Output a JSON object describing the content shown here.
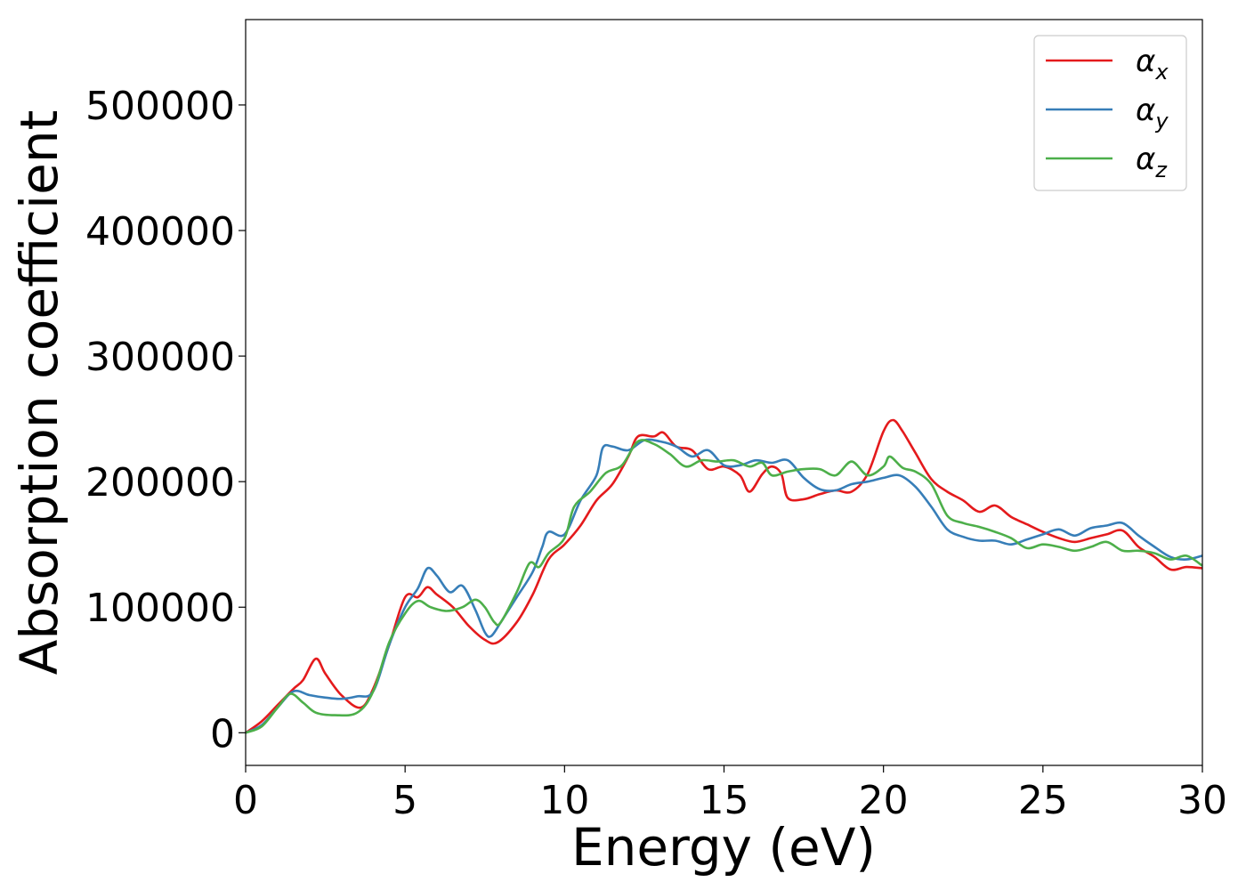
{
  "chart_data": {
    "type": "line",
    "title": "",
    "xlabel": "Energy (eV)",
    "ylabel": "Absorption coefficient",
    "xlim": [
      0,
      30
    ],
    "ylim": [
      -26000,
      568000
    ],
    "xticks": [
      "0",
      "5",
      "10",
      "15",
      "20",
      "25",
      "30"
    ],
    "yticks": [
      "0",
      "100000",
      "200000",
      "300000",
      "400000",
      "500000"
    ],
    "grid": false,
    "legend_position": "top-right",
    "series": [
      {
        "name": "α_x",
        "label_base": "α",
        "label_sub": "x",
        "color": "#e41a1c",
        "points": [
          [
            0,
            0
          ],
          [
            0.5,
            9000
          ],
          [
            1,
            22000
          ],
          [
            1.5,
            35000
          ],
          [
            1.8,
            42000
          ],
          [
            2.2,
            59000
          ],
          [
            2.5,
            47000
          ],
          [
            3,
            30000
          ],
          [
            3.6,
            20000
          ],
          [
            4,
            35000
          ],
          [
            4.5,
            70000
          ],
          [
            5,
            108000
          ],
          [
            5.4,
            108000
          ],
          [
            5.7,
            116000
          ],
          [
            6,
            110000
          ],
          [
            6.5,
            100000
          ],
          [
            7,
            85000
          ],
          [
            7.5,
            74000
          ],
          [
            7.9,
            72000
          ],
          [
            8.5,
            88000
          ],
          [
            9,
            110000
          ],
          [
            9.5,
            138000
          ],
          [
            10,
            150000
          ],
          [
            10.5,
            165000
          ],
          [
            11,
            185000
          ],
          [
            11.5,
            198000
          ],
          [
            12,
            220000
          ],
          [
            12.3,
            236000
          ],
          [
            12.8,
            236000
          ],
          [
            13.1,
            239000
          ],
          [
            13.5,
            228000
          ],
          [
            14,
            225000
          ],
          [
            14.5,
            210000
          ],
          [
            15,
            212000
          ],
          [
            15.5,
            205000
          ],
          [
            15.8,
            192000
          ],
          [
            16.2,
            206000
          ],
          [
            16.5,
            212000
          ],
          [
            16.8,
            206000
          ],
          [
            17,
            187000
          ],
          [
            17.5,
            186000
          ],
          [
            18,
            190000
          ],
          [
            18.5,
            193000
          ],
          [
            19,
            192000
          ],
          [
            19.5,
            206000
          ],
          [
            20,
            240000
          ],
          [
            20.3,
            249000
          ],
          [
            20.6,
            240000
          ],
          [
            21,
            223000
          ],
          [
            21.5,
            202000
          ],
          [
            22,
            192000
          ],
          [
            22.5,
            185000
          ],
          [
            23,
            176000
          ],
          [
            23.5,
            181000
          ],
          [
            24,
            172000
          ],
          [
            24.5,
            166000
          ],
          [
            25,
            160000
          ],
          [
            25.5,
            155000
          ],
          [
            26,
            152000
          ],
          [
            26.5,
            155000
          ],
          [
            27,
            158000
          ],
          [
            27.5,
            161000
          ],
          [
            28,
            148000
          ],
          [
            28.5,
            140000
          ],
          [
            29,
            130000
          ],
          [
            29.5,
            132000
          ],
          [
            30,
            131000
          ]
        ]
      },
      {
        "name": "α_y",
        "label_base": "α",
        "label_sub": "y",
        "color": "#377eb8",
        "points": [
          [
            0,
            0
          ],
          [
            0.5,
            6000
          ],
          [
            1,
            20000
          ],
          [
            1.5,
            33000
          ],
          [
            2,
            30000
          ],
          [
            2.5,
            28000
          ],
          [
            3,
            27000
          ],
          [
            3.5,
            29000
          ],
          [
            4,
            33000
          ],
          [
            4.5,
            70000
          ],
          [
            5,
            100000
          ],
          [
            5.4,
            115000
          ],
          [
            5.7,
            131000
          ],
          [
            6,
            125000
          ],
          [
            6.4,
            112000
          ],
          [
            6.8,
            117000
          ],
          [
            7.2,
            98000
          ],
          [
            7.5,
            80000
          ],
          [
            7.7,
            77000
          ],
          [
            8,
            88000
          ],
          [
            8.5,
            108000
          ],
          [
            9,
            128000
          ],
          [
            9.3,
            148000
          ],
          [
            9.5,
            160000
          ],
          [
            10,
            158000
          ],
          [
            10.5,
            185000
          ],
          [
            11,
            205000
          ],
          [
            11.2,
            227000
          ],
          [
            11.5,
            228000
          ],
          [
            12,
            225000
          ],
          [
            12.5,
            233000
          ],
          [
            13,
            232000
          ],
          [
            13.5,
            228000
          ],
          [
            14,
            220000
          ],
          [
            14.5,
            225000
          ],
          [
            15,
            213000
          ],
          [
            15.5,
            213000
          ],
          [
            16,
            217000
          ],
          [
            16.5,
            215000
          ],
          [
            17,
            217000
          ],
          [
            17.5,
            203000
          ],
          [
            18,
            194000
          ],
          [
            18.5,
            193000
          ],
          [
            19,
            198000
          ],
          [
            19.5,
            200000
          ],
          [
            20,
            203000
          ],
          [
            20.5,
            205000
          ],
          [
            21,
            196000
          ],
          [
            21.5,
            180000
          ],
          [
            22,
            162000
          ],
          [
            22.5,
            156000
          ],
          [
            23,
            153000
          ],
          [
            23.5,
            153000
          ],
          [
            24,
            150000
          ],
          [
            24.5,
            154000
          ],
          [
            25,
            158000
          ],
          [
            25.5,
            162000
          ],
          [
            26,
            157000
          ],
          [
            26.5,
            163000
          ],
          [
            27,
            165000
          ],
          [
            27.5,
            167000
          ],
          [
            28,
            157000
          ],
          [
            28.5,
            148000
          ],
          [
            29,
            140000
          ],
          [
            29.5,
            138000
          ],
          [
            30,
            141000
          ]
        ]
      },
      {
        "name": "α_z",
        "label_base": "α",
        "label_sub": "z",
        "color": "#4daf4a",
        "points": [
          [
            0,
            0
          ],
          [
            0.5,
            5000
          ],
          [
            1,
            20000
          ],
          [
            1.4,
            31000
          ],
          [
            1.8,
            24000
          ],
          [
            2.2,
            16000
          ],
          [
            2.8,
            14000
          ],
          [
            3.5,
            16000
          ],
          [
            4,
            33000
          ],
          [
            4.5,
            72000
          ],
          [
            5,
            95000
          ],
          [
            5.4,
            105000
          ],
          [
            5.8,
            100000
          ],
          [
            6.3,
            97000
          ],
          [
            6.8,
            100000
          ],
          [
            7.2,
            106000
          ],
          [
            7.5,
            100000
          ],
          [
            7.8,
            88000
          ],
          [
            8,
            88000
          ],
          [
            8.5,
            112000
          ],
          [
            8.9,
            135000
          ],
          [
            9.2,
            132000
          ],
          [
            9.5,
            143000
          ],
          [
            10,
            155000
          ],
          [
            10.3,
            180000
          ],
          [
            10.8,
            192000
          ],
          [
            11.3,
            207000
          ],
          [
            11.8,
            213000
          ],
          [
            12.3,
            232000
          ],
          [
            12.8,
            230000
          ],
          [
            13.3,
            222000
          ],
          [
            13.8,
            212000
          ],
          [
            14.3,
            217000
          ],
          [
            14.8,
            216000
          ],
          [
            15.3,
            217000
          ],
          [
            15.8,
            212000
          ],
          [
            16.2,
            215000
          ],
          [
            16.5,
            205000
          ],
          [
            17,
            208000
          ],
          [
            17.5,
            210000
          ],
          [
            18,
            210000
          ],
          [
            18.5,
            205000
          ],
          [
            19,
            216000
          ],
          [
            19.5,
            205000
          ],
          [
            20,
            212000
          ],
          [
            20.2,
            220000
          ],
          [
            20.6,
            211000
          ],
          [
            21,
            208000
          ],
          [
            21.5,
            198000
          ],
          [
            22,
            173000
          ],
          [
            22.5,
            167000
          ],
          [
            23,
            164000
          ],
          [
            23.5,
            160000
          ],
          [
            24,
            155000
          ],
          [
            24.5,
            147000
          ],
          [
            25,
            150000
          ],
          [
            25.5,
            148000
          ],
          [
            26,
            145000
          ],
          [
            26.5,
            148000
          ],
          [
            27,
            152000
          ],
          [
            27.5,
            145000
          ],
          [
            28,
            145000
          ],
          [
            28.5,
            143000
          ],
          [
            29,
            138000
          ],
          [
            29.5,
            141000
          ],
          [
            30,
            133000
          ]
        ]
      }
    ]
  }
}
